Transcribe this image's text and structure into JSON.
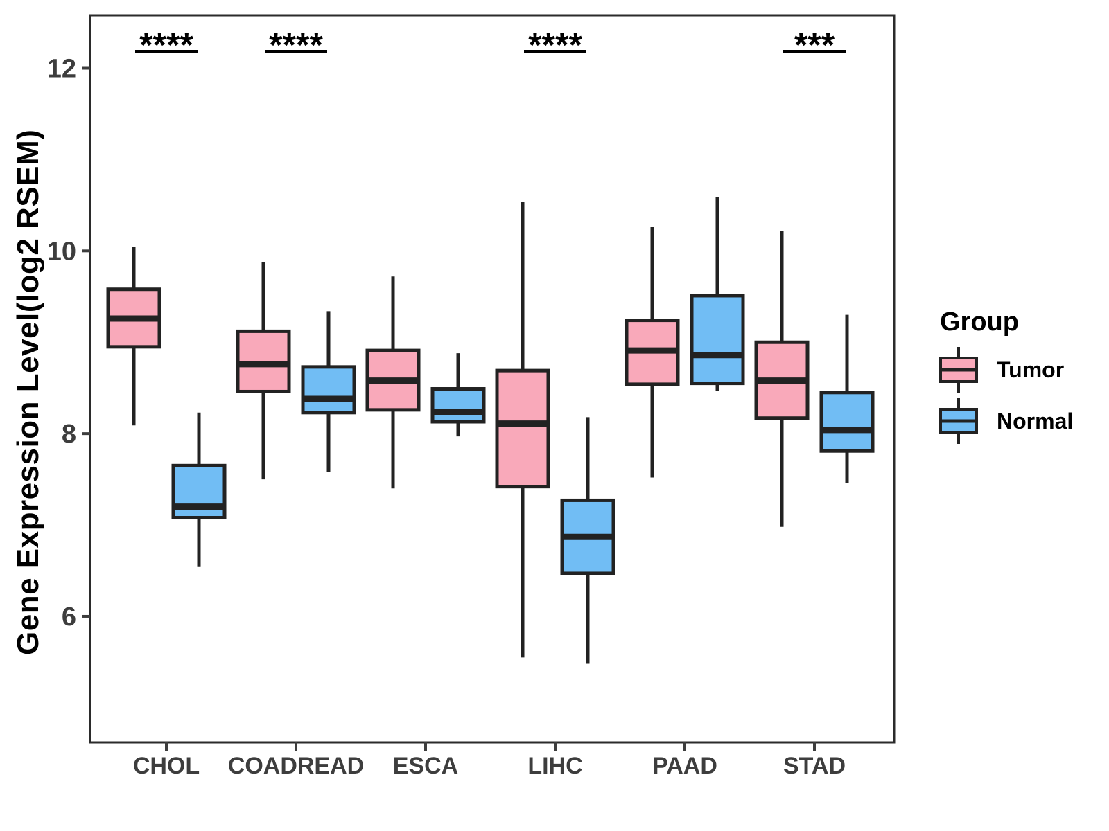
{
  "figure": {
    "background": "#FFFFFF",
    "panel_border_color": "#2B2B2B",
    "axis_text_color": "#3D3D3D",
    "box_stroke_color": "#222222"
  },
  "chart_data": {
    "type": "boxplot",
    "title": "",
    "xlabel": "",
    "ylabel": "Gene Expression Level(log2 RSEM)",
    "categories": [
      "CHOL",
      "COADREAD",
      "ESCA",
      "LIHC",
      "PAAD",
      "STAD"
    ],
    "y_ticks": [
      6,
      8,
      10,
      12
    ],
    "ylim": [
      4.62,
      12.58
    ],
    "grid": false,
    "legend": {
      "title": "Group",
      "position": "right",
      "items": [
        {
          "label": "Tumor",
          "color": "#F9A9BA"
        },
        {
          "label": "Normal",
          "color": "#71BDF4"
        }
      ]
    },
    "series": [
      {
        "name": "Tumor",
        "color": "#F9A9BA",
        "boxes": [
          {
            "category": "CHOL",
            "low": 8.09,
            "q1": 8.95,
            "median": 9.26,
            "q3": 9.58,
            "high": 10.04
          },
          {
            "category": "COADREAD",
            "low": 7.5,
            "q1": 8.46,
            "median": 8.76,
            "q3": 9.12,
            "high": 9.88
          },
          {
            "category": "ESCA",
            "low": 7.4,
            "q1": 8.26,
            "median": 8.58,
            "q3": 8.91,
            "high": 9.72
          },
          {
            "category": "LIHC",
            "low": 5.55,
            "q1": 7.42,
            "median": 8.11,
            "q3": 8.69,
            "high": 10.54
          },
          {
            "category": "PAAD",
            "low": 7.52,
            "q1": 8.54,
            "median": 8.91,
            "q3": 9.24,
            "high": 10.26
          },
          {
            "category": "STAD",
            "low": 6.98,
            "q1": 8.17,
            "median": 8.58,
            "q3": 9.0,
            "high": 10.22
          }
        ]
      },
      {
        "name": "Normal",
        "color": "#71BDF4",
        "boxes": [
          {
            "category": "CHOL",
            "low": 6.54,
            "q1": 7.08,
            "median": 7.2,
            "q3": 7.65,
            "high": 8.23
          },
          {
            "category": "COADREAD",
            "low": 7.58,
            "q1": 8.23,
            "median": 8.38,
            "q3": 8.73,
            "high": 9.34
          },
          {
            "category": "ESCA",
            "low": 7.97,
            "q1": 8.13,
            "median": 8.24,
            "q3": 8.49,
            "high": 8.88
          },
          {
            "category": "LIHC",
            "low": 5.48,
            "q1": 6.47,
            "median": 6.87,
            "q3": 7.27,
            "high": 8.18
          },
          {
            "category": "PAAD",
            "low": 8.47,
            "q1": 8.55,
            "median": 8.86,
            "q3": 9.51,
            "high": 10.59
          },
          {
            "category": "STAD",
            "low": 7.46,
            "q1": 7.81,
            "median": 8.04,
            "q3": 8.45,
            "high": 9.3
          }
        ]
      }
    ],
    "significance": [
      {
        "category": "CHOL",
        "label": "****"
      },
      {
        "category": "COADREAD",
        "label": "****"
      },
      {
        "category": "LIHC",
        "label": "****"
      },
      {
        "category": "STAD",
        "label": "***"
      }
    ]
  }
}
